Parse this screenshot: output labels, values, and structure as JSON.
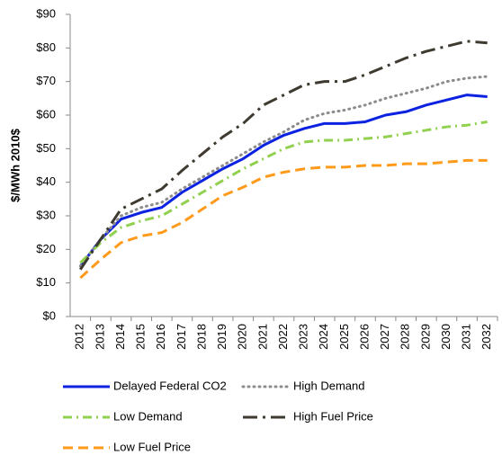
{
  "chart_data": {
    "type": "line",
    "y_label": "$/MWh 2010$",
    "categories": [
      "2012",
      "2013",
      "2014",
      "2015",
      "2016",
      "2017",
      "2018",
      "2019",
      "2020",
      "2021",
      "2022",
      "2023",
      "2024",
      "2025",
      "2026",
      "2027",
      "2028",
      "2029",
      "2030",
      "2031",
      "2032"
    ],
    "series": [
      {
        "name": "Delayed Federal CO2",
        "color": "#0b22e0",
        "dash": "solid",
        "values": [
          15,
          23,
          29,
          31,
          32.5,
          37,
          40.5,
          44,
          47,
          51,
          54,
          56,
          57.5,
          57.5,
          58,
          60,
          61,
          63,
          64.5,
          66,
          65.5
        ]
      },
      {
        "name": "High Demand",
        "color": "#8c8c8c",
        "dash": "dot",
        "values": [
          15,
          23,
          30,
          32.5,
          34,
          38,
          41.5,
          45,
          48.5,
          52,
          55,
          58.5,
          60.5,
          61.5,
          63,
          65,
          66.5,
          68,
          70,
          71,
          71.5
        ]
      },
      {
        "name": "Low Demand",
        "color": "#92d050",
        "dash": "dashdot",
        "values": [
          16,
          22,
          26.5,
          28.5,
          30,
          33.5,
          37,
          40.5,
          44,
          47,
          50,
          52,
          52.5,
          52.5,
          53,
          53.5,
          54.5,
          55.5,
          56.5,
          57,
          58
        ]
      },
      {
        "name": "High Fuel Price",
        "color": "#3f3a30",
        "dash": "longdashdot",
        "values": [
          14,
          23,
          32,
          35,
          38,
          43.5,
          48.5,
          53.5,
          57.5,
          63,
          66,
          69,
          70,
          70,
          72,
          74.5,
          77,
          79,
          80.5,
          82,
          81.5
        ]
      },
      {
        "name": "Low Fuel Price",
        "color": "#ff9a1a",
        "dash": "dash",
        "values": [
          11.5,
          17,
          22,
          24,
          25,
          28,
          32,
          36,
          38.5,
          41.5,
          43,
          44,
          44.5,
          44.5,
          45,
          45,
          45.5,
          45.5,
          46,
          46.5,
          46.5
        ]
      }
    ],
    "ylim": [
      0,
      90
    ],
    "yticks": [
      {
        "value": 0,
        "label": "$0"
      },
      {
        "value": 10,
        "label": "$10"
      },
      {
        "value": 20,
        "label": "$20"
      },
      {
        "value": 30,
        "label": "$30"
      },
      {
        "value": 40,
        "label": "$40"
      },
      {
        "value": 50,
        "label": "$50"
      },
      {
        "value": 60,
        "label": "$60"
      },
      {
        "value": 70,
        "label": "$70"
      },
      {
        "value": 80,
        "label": "$80"
      },
      {
        "value": 90,
        "label": "$90"
      }
    ],
    "grid": false
  }
}
